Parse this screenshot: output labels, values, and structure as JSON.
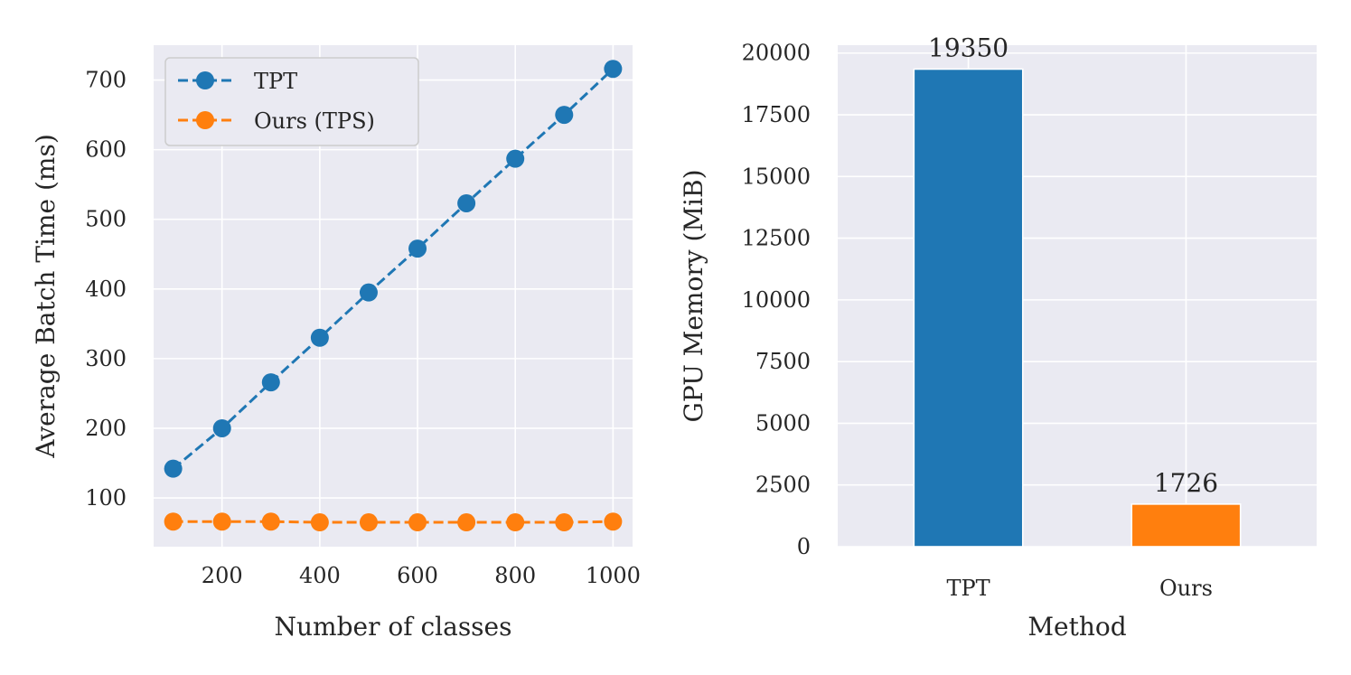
{
  "chart_data": [
    {
      "type": "line",
      "title": "",
      "xlabel": "Number of classes",
      "ylabel": "Average Batch Time (ms)",
      "x": [
        100,
        200,
        300,
        400,
        500,
        600,
        700,
        800,
        900,
        1000
      ],
      "xlim": [
        60,
        1040
      ],
      "ylim": [
        30,
        750
      ],
      "xticks": [
        200,
        400,
        600,
        800,
        1000
      ],
      "yticks": [
        100,
        200,
        300,
        400,
        500,
        600,
        700
      ],
      "grid": true,
      "legend_position": "top-left",
      "series": [
        {
          "name": "TPT",
          "color": "#1f77b4",
          "values": [
            142,
            200,
            266,
            330,
            395,
            458,
            523,
            587,
            650,
            716
          ]
        },
        {
          "name": "Ours (TPS)",
          "color": "#ff7f0e",
          "values": [
            66,
            66,
            66,
            65,
            65,
            65,
            65,
            65,
            65,
            66
          ]
        }
      ]
    },
    {
      "type": "bar",
      "title": "",
      "xlabel": "Method",
      "ylabel": "GPU Memory (MiB)",
      "categories": [
        "TPT",
        "Ours"
      ],
      "values": [
        19350,
        1726
      ],
      "colors": [
        "#1f77b4",
        "#ff7f0e"
      ],
      "ylim": [
        0,
        20320
      ],
      "yticks": [
        0,
        2500,
        5000,
        7500,
        10000,
        12500,
        15000,
        17500,
        20000
      ],
      "grid": true
    }
  ]
}
